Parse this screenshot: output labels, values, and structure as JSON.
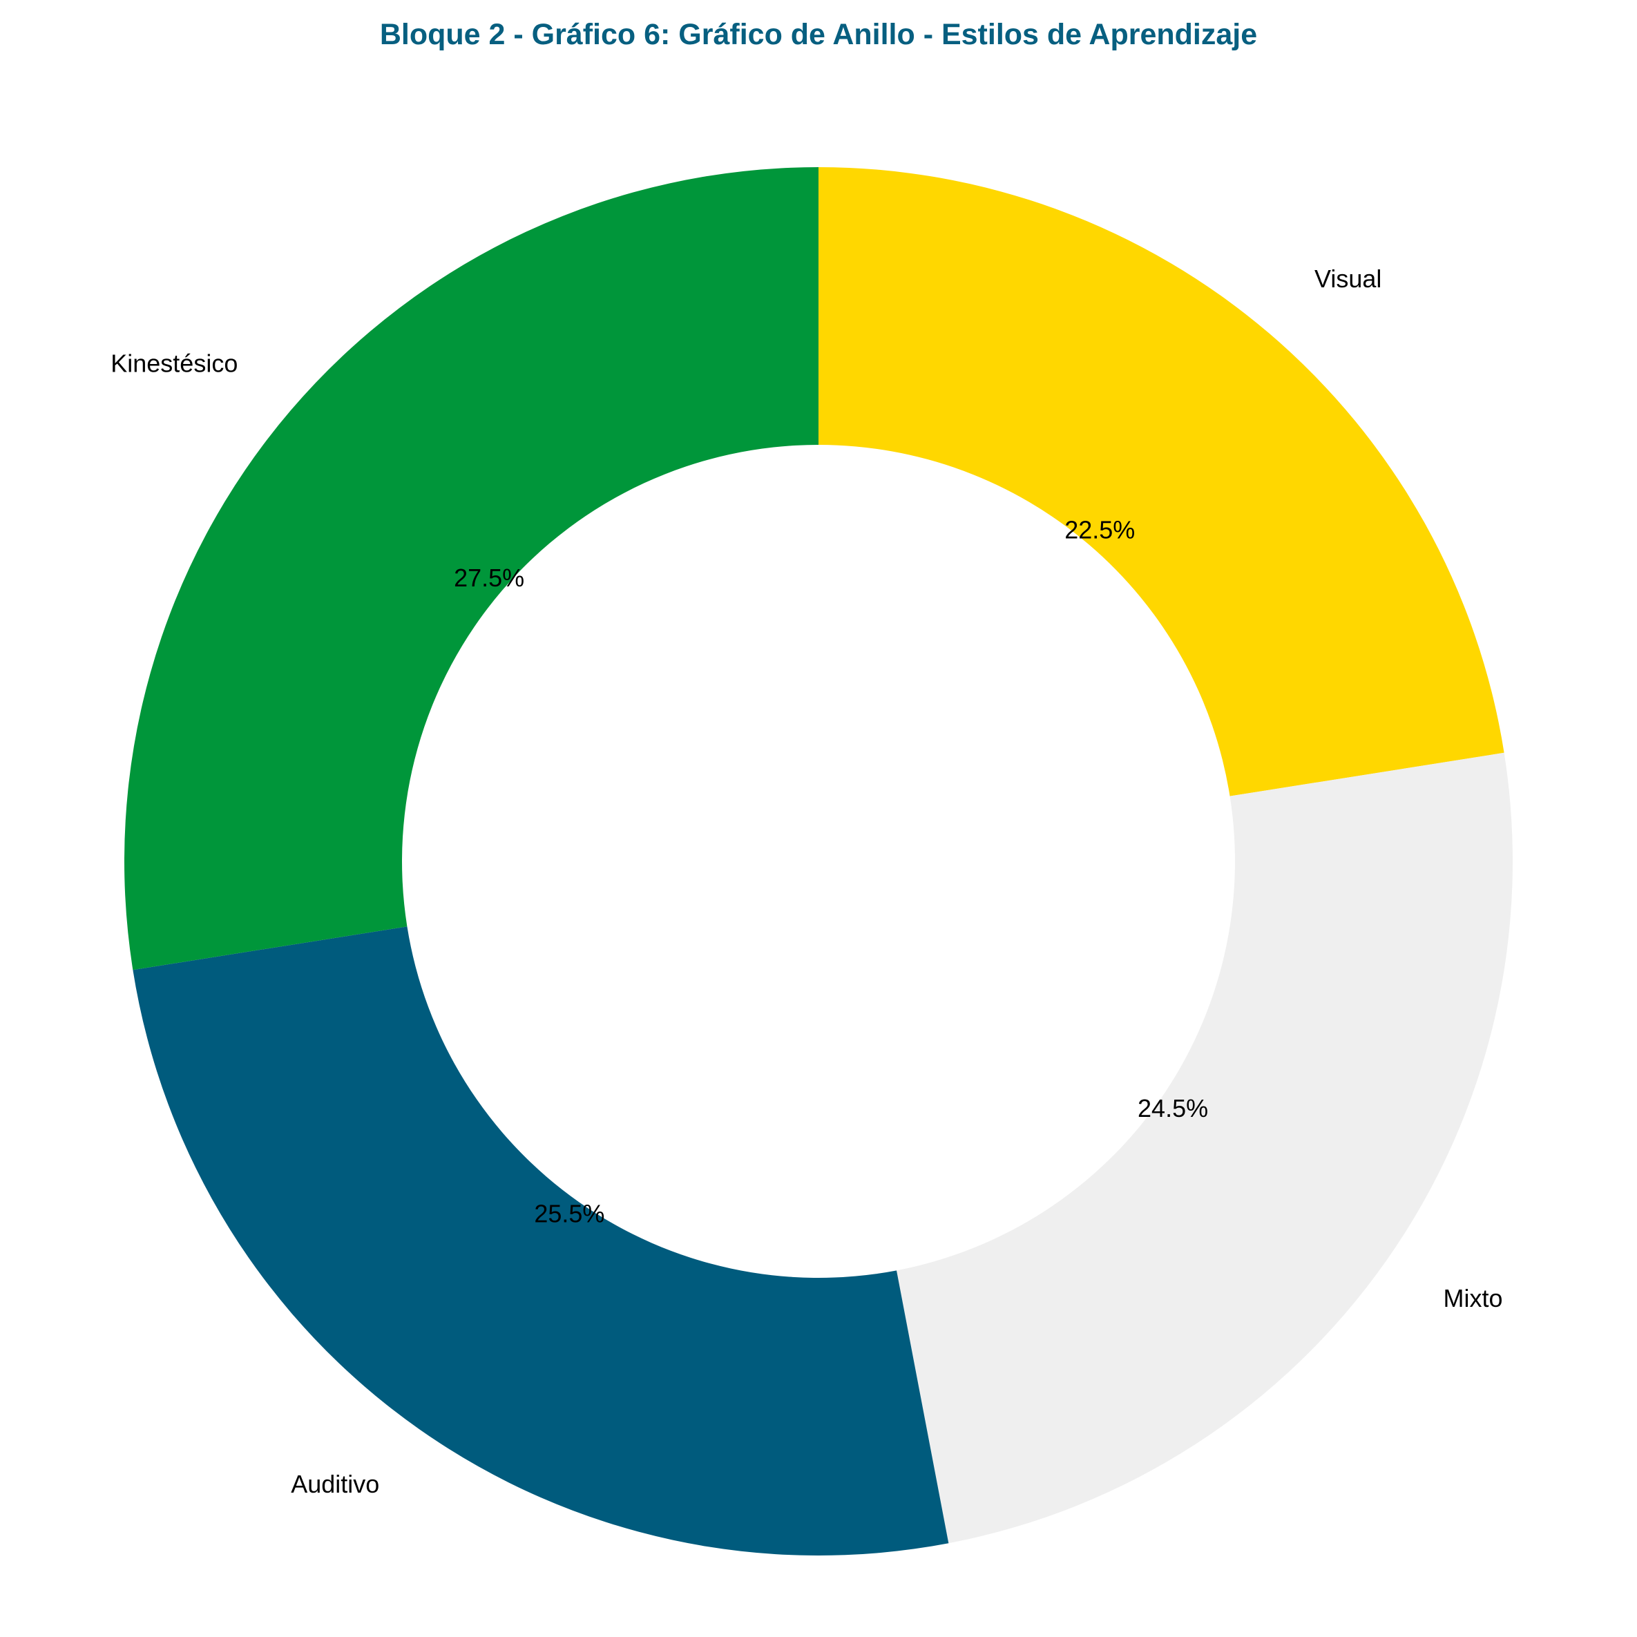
{
  "chart_data": {
    "type": "pie",
    "title": "Bloque 2 - Gráfico 6: Gráfico de Anillo - Estilos de Aprendizaje",
    "title_color": "#075F80",
    "donut": true,
    "start_angle_deg": 90,
    "direction": "clockwise",
    "slices": [
      {
        "label": "Visual",
        "value": 22.5,
        "pct_label": "22.5%",
        "color": "#FFD700"
      },
      {
        "label": "Mixto",
        "value": 24.5,
        "pct_label": "24.5%",
        "color": "#EFEFEF"
      },
      {
        "label": "Auditivo",
        "value": 25.5,
        "pct_label": "25.5%",
        "color": "#005B7D"
      },
      {
        "label": "Kinestésico",
        "value": 27.5,
        "pct_label": "27.5%",
        "color": "#00963A"
      }
    ]
  }
}
